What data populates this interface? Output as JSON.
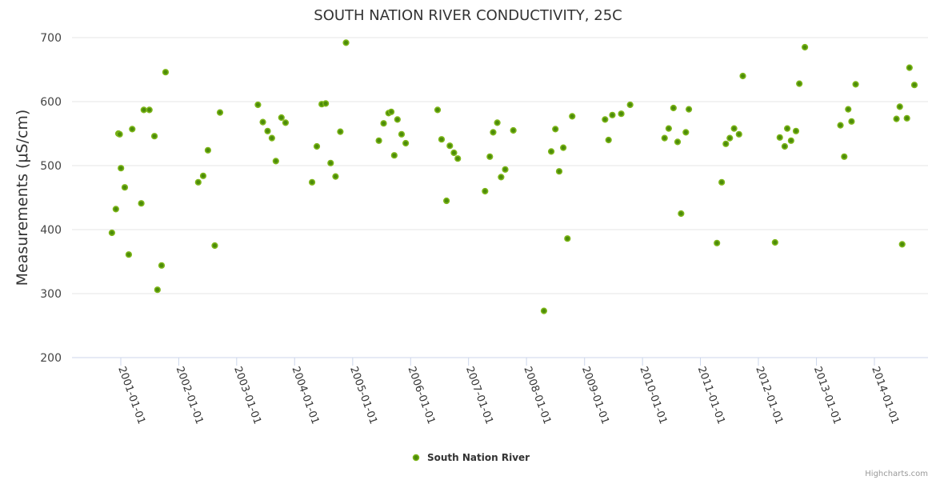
{
  "chart_data": {
    "type": "scatter",
    "title": "SOUTH NATION RIVER CONDUCTIVITY, 25C",
    "xlabel": "",
    "ylabel": "Measurements (μS/cm)",
    "ylim": [
      200,
      700
    ],
    "xlim": [
      "2000-07-20",
      "2015-03-20"
    ],
    "grid": true,
    "legend_position": "bottom-center",
    "yticks": [
      "200",
      "300",
      "400",
      "500",
      "600",
      "700"
    ],
    "xticks": [
      "2001-01-01",
      "2002-01-01",
      "2003-01-01",
      "2004-01-01",
      "2005-01-01",
      "2006-01-01",
      "2007-01-01",
      "2008-01-01",
      "2009-01-01",
      "2010-01-01",
      "2011-01-01",
      "2012-01-01",
      "2013-01-01",
      "2014-01-01"
    ],
    "series": [
      {
        "name": "South Nation River",
        "color": "#7cb518",
        "points": [
          [
            "2000-11-06",
            395
          ],
          [
            "2000-11-31",
            432
          ],
          [
            "2000-12-17",
            550
          ],
          [
            "2000-12-25",
            549
          ],
          [
            "2001-01-02",
            496
          ],
          [
            "2001-01-26",
            466
          ],
          [
            "2001-02-20",
            361
          ],
          [
            "2001-03-14",
            557
          ],
          [
            "2001-05-10",
            441
          ],
          [
            "2001-05-26",
            587
          ],
          [
            "2001-06-30",
            587
          ],
          [
            "2001-08-01",
            546
          ],
          [
            "2001-08-20",
            306
          ],
          [
            "2001-09-15",
            344
          ],
          [
            "2001-10-10",
            646
          ],
          [
            "2002-05-04",
            474
          ],
          [
            "2002-06-04",
            484
          ],
          [
            "2002-07-04",
            524
          ],
          [
            "2002-08-16",
            375
          ],
          [
            "2002-09-18",
            583
          ],
          [
            "2003-05-15",
            595
          ],
          [
            "2003-06-15",
            568
          ],
          [
            "2003-07-15",
            554
          ],
          [
            "2003-08-11",
            543
          ],
          [
            "2003-09-05",
            507
          ],
          [
            "2003-10-10",
            575
          ],
          [
            "2003-11-05",
            567
          ],
          [
            "2004-04-20",
            474
          ],
          [
            "2004-05-20",
            530
          ],
          [
            "2004-06-20",
            596
          ],
          [
            "2004-07-15",
            597
          ],
          [
            "2004-08-15",
            504
          ],
          [
            "2004-09-15",
            483
          ],
          [
            "2004-10-15",
            553
          ],
          [
            "2004-11-20",
            692
          ],
          [
            "2005-06-15",
            539
          ],
          [
            "2005-07-15",
            566
          ],
          [
            "2005-08-15",
            582
          ],
          [
            "2005-09-01",
            584
          ],
          [
            "2005-09-20",
            516
          ],
          [
            "2005-10-10",
            572
          ],
          [
            "2005-11-05",
            549
          ],
          [
            "2005-12-01",
            535
          ],
          [
            "2006-06-20",
            587
          ],
          [
            "2006-07-15",
            541
          ],
          [
            "2006-08-15",
            445
          ],
          [
            "2006-09-05",
            531
          ],
          [
            "2006-10-01",
            520
          ],
          [
            "2006-10-25",
            511
          ],
          [
            "2007-04-15",
            460
          ],
          [
            "2007-05-15",
            514
          ],
          [
            "2007-06-05",
            552
          ],
          [
            "2007-07-01",
            567
          ],
          [
            "2007-07-25",
            482
          ],
          [
            "2007-08-20",
            494
          ],
          [
            "2007-10-10",
            555
          ],
          [
            "2008-04-20",
            273
          ],
          [
            "2008-06-05",
            522
          ],
          [
            "2008-07-01",
            557
          ],
          [
            "2008-07-25",
            491
          ],
          [
            "2008-08-20",
            528
          ],
          [
            "2008-09-15",
            386
          ],
          [
            "2008-10-15",
            577
          ],
          [
            "2009-05-10",
            572
          ],
          [
            "2009-06-01",
            540
          ],
          [
            "2009-06-25",
            579
          ],
          [
            "2009-08-20",
            581
          ],
          [
            "2009-10-15",
            595
          ],
          [
            "2010-05-20",
            543
          ],
          [
            "2010-06-15",
            558
          ],
          [
            "2010-07-15",
            590
          ],
          [
            "2010-08-10",
            537
          ],
          [
            "2010-09-01",
            425
          ],
          [
            "2010-10-01",
            552
          ],
          [
            "2010-10-20",
            588
          ],
          [
            "2011-04-15",
            379
          ],
          [
            "2011-05-15",
            474
          ],
          [
            "2011-06-10",
            534
          ],
          [
            "2011-07-05",
            543
          ],
          [
            "2011-08-01",
            558
          ],
          [
            "2011-09-01",
            549
          ],
          [
            "2011-09-25",
            640
          ],
          [
            "2012-04-15",
            380
          ],
          [
            "2012-05-15",
            544
          ],
          [
            "2012-06-15",
            530
          ],
          [
            "2012-07-01",
            558
          ],
          [
            "2012-07-25",
            539
          ],
          [
            "2012-08-25",
            554
          ],
          [
            "2012-09-15",
            628
          ],
          [
            "2012-10-20",
            685
          ],
          [
            "2013-06-01",
            563
          ],
          [
            "2013-06-25",
            514
          ],
          [
            "2013-07-20",
            588
          ],
          [
            "2013-08-10",
            569
          ],
          [
            "2013-09-05",
            627
          ],
          [
            "2014-05-20",
            573
          ],
          [
            "2014-06-10",
            592
          ],
          [
            "2014-06-25",
            377
          ],
          [
            "2014-07-25",
            574
          ],
          [
            "2014-08-10",
            653
          ],
          [
            "2014-09-10",
            626
          ]
        ]
      }
    ]
  },
  "legend": {
    "label": "South Nation River"
  },
  "credits": "Highcharts.com"
}
